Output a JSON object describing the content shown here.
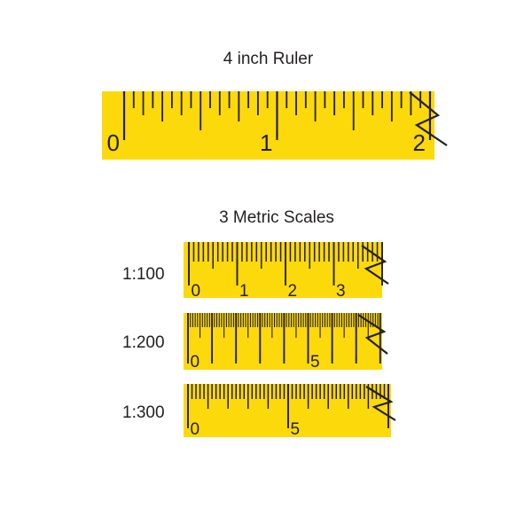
{
  "page": {
    "background_color": "#ffffff",
    "ink_color": "#231f20",
    "ruler_fill_color": "#fcd90a"
  },
  "inch_ruler": {
    "title": "4 inch Ruler",
    "unit_labels": [
      "0",
      "1",
      "2"
    ],
    "divisions_per_inch": 16,
    "break_symbol": "zigzag"
  },
  "metric_section": {
    "title": "3 Metric Scales",
    "scales": [
      {
        "name": "1:100",
        "tick_labels": [
          "0",
          "1",
          "2",
          "3"
        ],
        "minor_divisions_per_unit": 10,
        "break_symbol": "zigzag"
      },
      {
        "name": "1:200",
        "tick_labels": [
          "0",
          "5"
        ],
        "minor_divisions_per_unit": 10,
        "break_symbol": "zigzag"
      },
      {
        "name": "1:300",
        "tick_labels": [
          "0",
          "5"
        ],
        "minor_divisions_per_unit": 5,
        "break_symbol": "zigzag"
      }
    ]
  }
}
